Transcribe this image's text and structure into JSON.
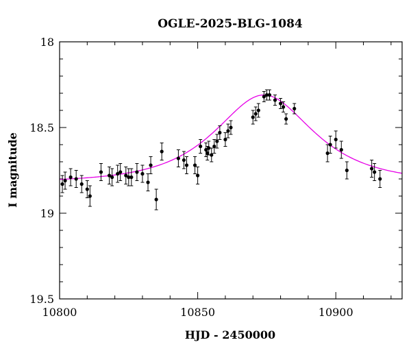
{
  "chart_data": {
    "type": "scatter",
    "title": "OGLE-2025-BLG-1084",
    "xlabel": "HJD - 2450000",
    "ylabel": "I magnitude",
    "xlim": [
      10800,
      10924
    ],
    "ylim": [
      18.0,
      19.5
    ],
    "y_inverted": true,
    "grid": false,
    "x_major_ticks": [
      10800,
      10850,
      10900
    ],
    "y_major_ticks": [
      18.0,
      18.5,
      19.0,
      19.5
    ],
    "x_tick_labels": [
      "10800",
      "10850",
      "10900"
    ],
    "y_tick_labels": [
      "18",
      "18.5",
      "19",
      "19.5"
    ],
    "series": [
      {
        "kind": "points_with_errorbars",
        "color": "#000000",
        "x": [
          10801,
          10802,
          10804,
          10806,
          10808,
          10810,
          10811,
          10815,
          10818,
          10819,
          10821,
          10822,
          10824,
          10825,
          10826,
          10828,
          10830,
          10832,
          10833,
          10835,
          10837,
          10843,
          10845,
          10846,
          10849,
          10850,
          10851,
          10853,
          10853.5,
          10854,
          10855,
          10856,
          10857,
          10858,
          10860,
          10861,
          10862,
          10870,
          10871,
          10872,
          10874,
          10875,
          10876,
          10878,
          10880,
          10881,
          10882,
          10885,
          10897,
          10898,
          10900,
          10902,
          10904,
          10913,
          10914,
          10916
        ],
        "y": [
          18.83,
          18.81,
          18.79,
          18.8,
          18.83,
          18.86,
          18.9,
          18.76,
          18.78,
          18.79,
          18.77,
          18.76,
          18.78,
          18.79,
          18.79,
          18.76,
          18.77,
          18.82,
          18.72,
          18.92,
          18.64,
          18.68,
          18.69,
          18.72,
          18.72,
          18.78,
          18.61,
          18.63,
          18.65,
          18.62,
          18.66,
          18.61,
          18.58,
          18.53,
          18.57,
          18.52,
          18.5,
          18.44,
          18.42,
          18.4,
          18.32,
          18.31,
          18.31,
          18.34,
          18.36,
          18.38,
          18.45,
          18.39,
          18.65,
          18.6,
          18.57,
          18.63,
          18.75,
          18.74,
          18.76,
          18.8
        ],
        "err": [
          0.05,
          0.05,
          0.05,
          0.05,
          0.05,
          0.05,
          0.06,
          0.05,
          0.05,
          0.05,
          0.05,
          0.05,
          0.05,
          0.05,
          0.05,
          0.05,
          0.05,
          0.05,
          0.05,
          0.06,
          0.05,
          0.05,
          0.05,
          0.05,
          0.05,
          0.05,
          0.04,
          0.04,
          0.04,
          0.04,
          0.04,
          0.04,
          0.04,
          0.04,
          0.04,
          0.04,
          0.04,
          0.04,
          0.04,
          0.04,
          0.03,
          0.03,
          0.03,
          0.03,
          0.03,
          0.03,
          0.03,
          0.03,
          0.05,
          0.05,
          0.05,
          0.05,
          0.05,
          0.05,
          0.05,
          0.05
        ]
      },
      {
        "kind": "model_curve",
        "color": "#e600e6",
        "model": {
          "t0": 10874,
          "tE": 25,
          "u0": 0.75,
          "baseline": 18.82
        }
      }
    ]
  }
}
